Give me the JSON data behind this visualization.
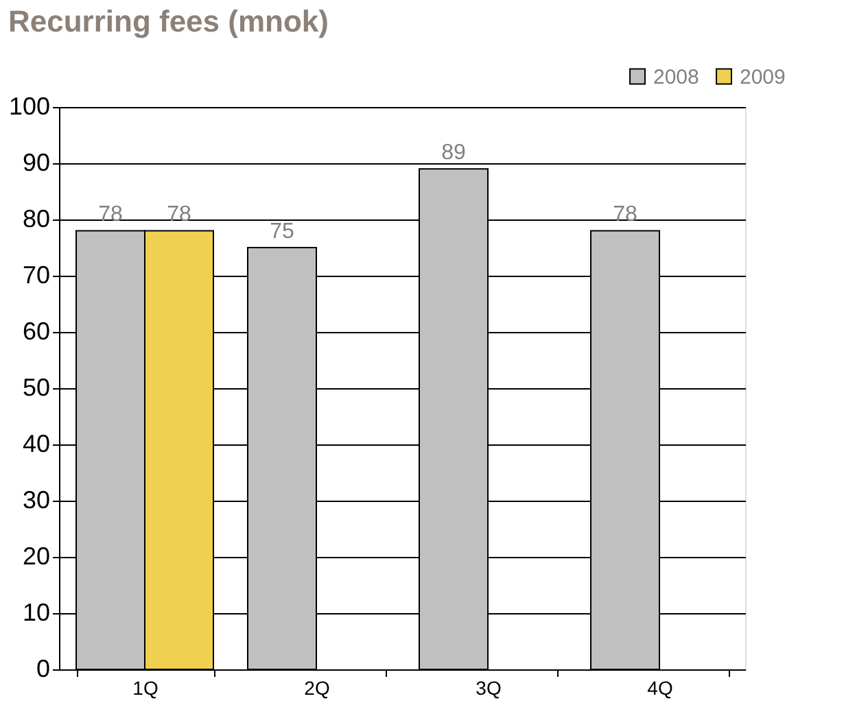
{
  "chart_data": {
    "type": "bar",
    "title": "Recurring fees (mnok)",
    "categories": [
      "1Q",
      "2Q",
      "3Q",
      "4Q"
    ],
    "series": [
      {
        "name": "2008",
        "color": "#c0c0c0",
        "values": [
          78,
          75,
          89,
          78
        ]
      },
      {
        "name": "2009",
        "color": "#f0d050",
        "values": [
          78,
          null,
          null,
          null
        ]
      }
    ],
    "ylim": [
      0,
      100
    ],
    "yticks": [
      0,
      10,
      20,
      30,
      40,
      50,
      60,
      70,
      80,
      90,
      100
    ],
    "grid": "y",
    "legend": "top right",
    "data_labels": true
  }
}
